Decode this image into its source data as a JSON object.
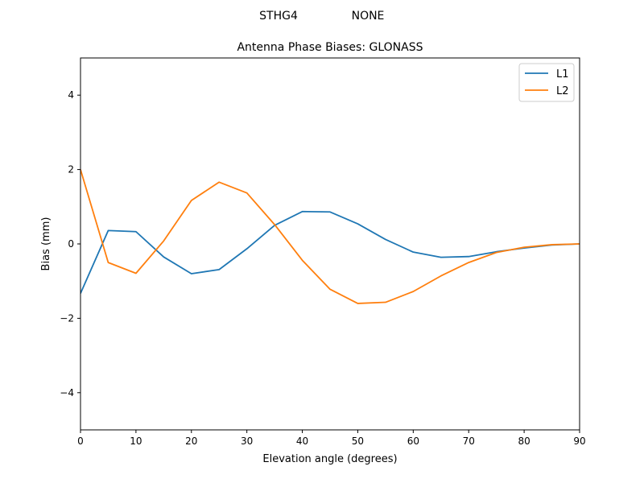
{
  "header": {
    "antenna": "STHG4",
    "radome": "NONE"
  },
  "chart_data": {
    "type": "line",
    "title": "Antenna Phase Biases: GLONASS",
    "xlabel": "Elevation angle (degrees)",
    "ylabel": "Bias (mm)",
    "xlim": [
      0,
      90
    ],
    "ylim": [
      -5,
      5
    ],
    "xticks": [
      0,
      10,
      20,
      30,
      40,
      50,
      60,
      70,
      80,
      90
    ],
    "yticks": [
      -4,
      -2,
      0,
      2,
      4
    ],
    "xtick_labels": [
      "0",
      "10",
      "20",
      "30",
      "40",
      "50",
      "60",
      "70",
      "80",
      "90"
    ],
    "ytick_labels": [
      "−4",
      "−2",
      "0",
      "2",
      "4"
    ],
    "grid": false,
    "legend_position": "top-right",
    "x": [
      0,
      5,
      10,
      15,
      20,
      25,
      30,
      35,
      40,
      45,
      50,
      55,
      60,
      65,
      70,
      75,
      80,
      85,
      90
    ],
    "series": [
      {
        "name": "L1",
        "color": "#1f77b4",
        "values": [
          -1.33,
          0.36,
          0.33,
          -0.35,
          -0.8,
          -0.69,
          -0.13,
          0.5,
          0.87,
          0.86,
          0.54,
          0.12,
          -0.22,
          -0.36,
          -0.34,
          -0.21,
          -0.11,
          -0.03,
          0.0
        ]
      },
      {
        "name": "L2",
        "color": "#ff7f0e",
        "values": [
          2.0,
          -0.5,
          -0.79,
          0.08,
          1.17,
          1.66,
          1.37,
          0.52,
          -0.44,
          -1.22,
          -1.6,
          -1.57,
          -1.28,
          -0.86,
          -0.5,
          -0.23,
          -0.09,
          -0.02,
          0.0
        ]
      }
    ]
  }
}
